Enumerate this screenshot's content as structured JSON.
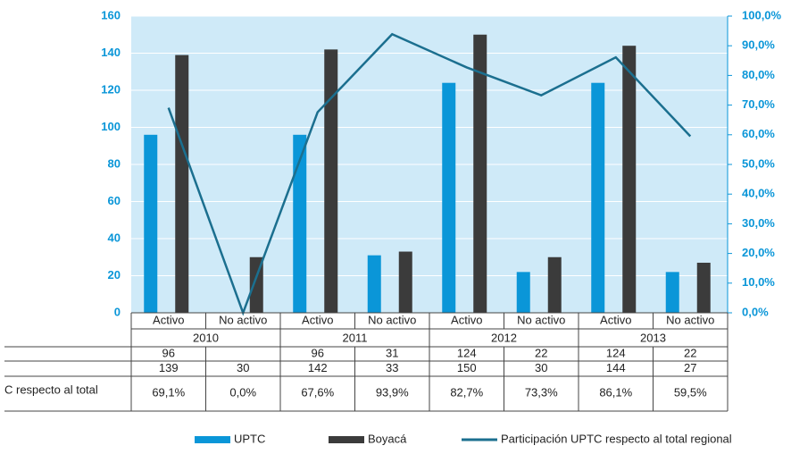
{
  "chart_data": {
    "type": "bar",
    "categories": [
      "Activo",
      "No activo",
      "Activo",
      "No activo",
      "Activo",
      "No activo",
      "Activo",
      "No activo"
    ],
    "groups": [
      "2010",
      "2011",
      "2012",
      "2013"
    ],
    "series": [
      {
        "name": "UPTC",
        "color": "#0a96d8",
        "values": [
          96,
          null,
          96,
          31,
          124,
          22,
          124,
          22
        ]
      },
      {
        "name": "Boyacá",
        "color": "#3b3b3b",
        "values": [
          139,
          30,
          142,
          33,
          150,
          30,
          144,
          27
        ]
      },
      {
        "name": "Participación UPTC respecto al total regional",
        "color": "#1b6f8f",
        "type": "line",
        "axis": "y2",
        "values": [
          69.1,
          0.0,
          67.6,
          93.9,
          82.7,
          73.3,
          86.1,
          59.5
        ],
        "value_labels": [
          "69,1%",
          "0,0%",
          "67,6%",
          "93,9%",
          "82,7%",
          "73,3%",
          "86,1%",
          "59,5%"
        ]
      }
    ],
    "table_row_label": "C respecto al total",
    "ylim": [
      0,
      160
    ],
    "yticks": [
      0,
      20,
      40,
      60,
      80,
      100,
      120,
      140,
      160
    ],
    "y2lim": [
      0,
      100
    ],
    "y2ticks": [
      {
        "value": 0,
        "label": "0,0%"
      },
      {
        "value": 10,
        "label": "10,0%"
      },
      {
        "value": 20,
        "label": "20,0%"
      },
      {
        "value": 30,
        "label": "30,0%"
      },
      {
        "value": 40,
        "label": "40,0%"
      },
      {
        "value": 50,
        "label": "50,0%"
      },
      {
        "value": 60,
        "label": "60,0%"
      },
      {
        "value": 70,
        "label": "70,0%"
      },
      {
        "value": 80,
        "label": "80,0%"
      },
      {
        "value": 90,
        "label": "90,0%"
      },
      {
        "value": 100,
        "label": "100,0%"
      }
    ],
    "plot_background": "#cfeaf8"
  }
}
